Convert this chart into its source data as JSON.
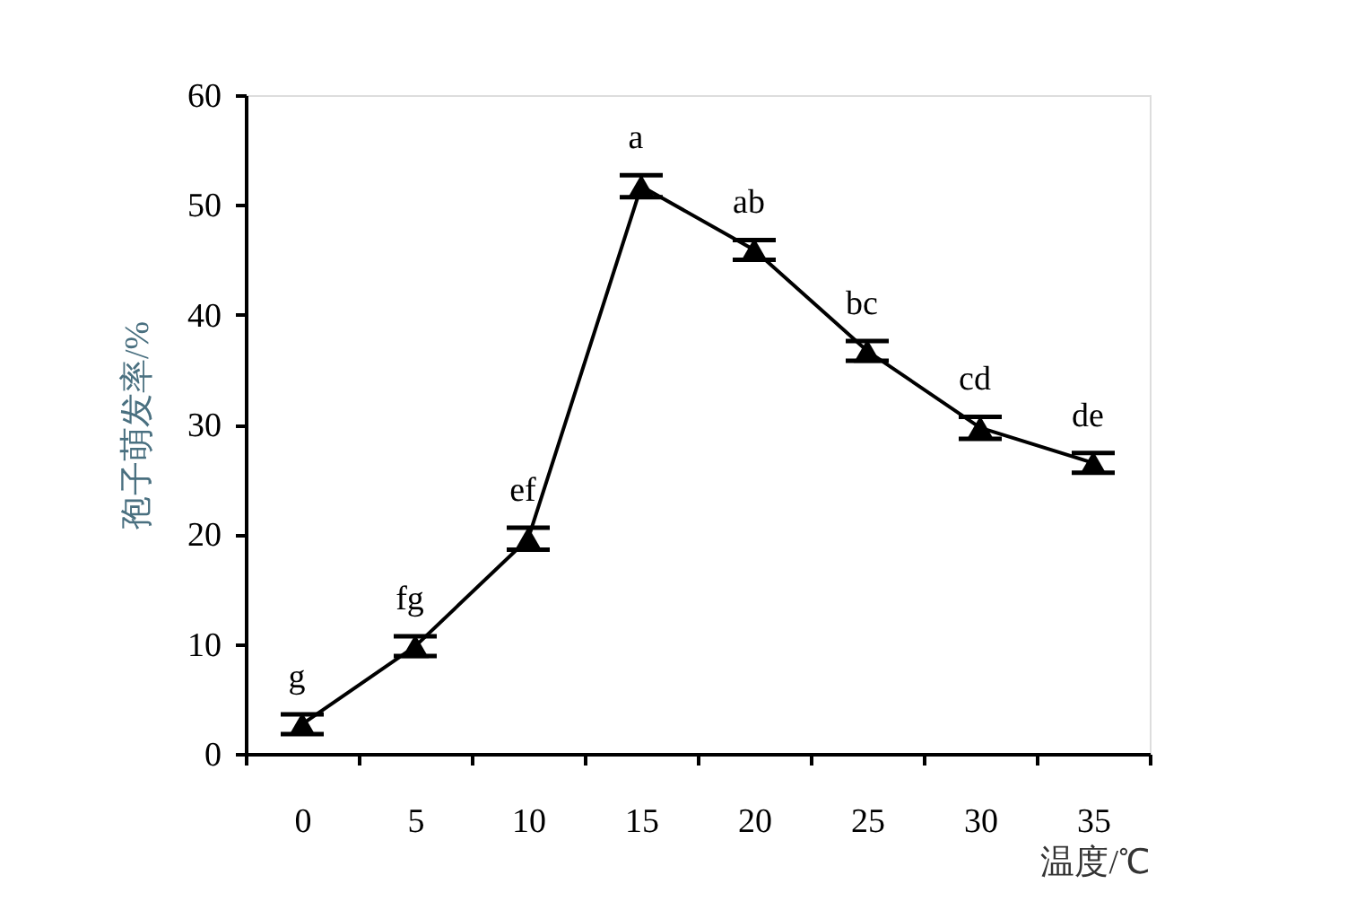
{
  "chart_data": {
    "type": "line",
    "xlabel": "温度/℃",
    "ylabel": "孢子萌发率/%",
    "categories": [
      "0",
      "5",
      "10",
      "15",
      "20",
      "25",
      "30",
      "35"
    ],
    "series": [
      {
        "color": "#000000",
        "values": [
          2.7,
          9.8,
          19.6,
          51.7,
          45.9,
          36.7,
          29.7,
          26.5
        ],
        "errors": [
          0.9,
          0.9,
          1,
          1,
          0.9,
          0.9,
          1,
          0.9
        ]
      }
    ],
    "ylim": [
      0,
      60
    ],
    "yticks": [
      0,
      10,
      20,
      30,
      40,
      50,
      60
    ],
    "grid": false,
    "marker": "triangle",
    "line_style": "solid",
    "annotations": [
      "g",
      "fg",
      "ef",
      "a",
      "ab",
      "bc",
      "cd",
      "de"
    ]
  }
}
